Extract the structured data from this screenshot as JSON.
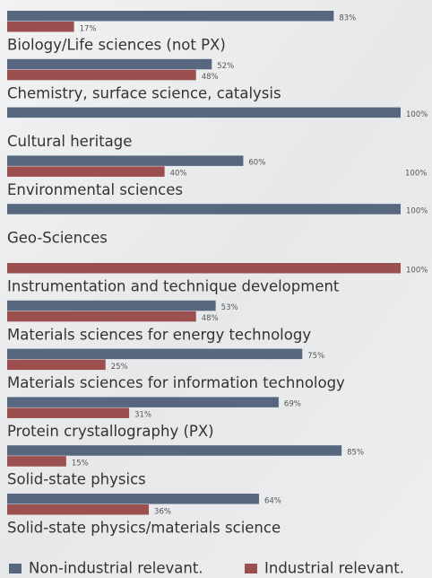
{
  "chart_data": {
    "type": "bar",
    "orientation": "horizontal",
    "categories": [
      "Biology/Life sciences (not PX)",
      "Chemistry, surface   science, catalysis",
      "Cultural heritage",
      "Environmental sciences",
      "Geo-Sciences",
      "Instrumentation and technique development",
      "Materials sciences for energy technology",
      "Materials sciences for information technology",
      "Protein crystallography (PX)",
      "Solid-state physics",
      "Solid-state physics/materials science"
    ],
    "series": [
      {
        "name": "Non-industrial relevant.",
        "color": "#56677f",
        "values": [
          83,
          52,
          100,
          60,
          100,
          null,
          53,
          75,
          69,
          85,
          64
        ],
        "value_labels": [
          "83%",
          "52%",
          "100%",
          "60%",
          "100%",
          null,
          "53%",
          "75%",
          "69%",
          "85%",
          "64%"
        ]
      },
      {
        "name": "Industrial relevant.",
        "color": "#9b4f4f",
        "values": [
          17,
          48,
          null,
          40,
          null,
          100,
          48,
          25,
          31,
          15,
          36
        ],
        "value_labels": [
          "17%",
          "48%",
          null,
          "40%",
          null,
          "100%",
          "48%",
          "25%",
          "31%",
          "15%",
          "36%"
        ]
      }
    ],
    "xlim": [
      0,
      100
    ],
    "annotation": "100%"
  }
}
